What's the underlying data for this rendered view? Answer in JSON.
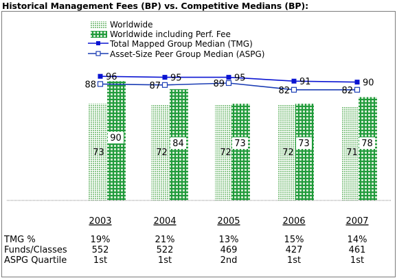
{
  "title": "Historical Management Fees (BP) vs. Competitive Medians (BP):",
  "colors": {
    "worldwide": "#8cc78c",
    "perf_fee": "#1f9a3a",
    "tmg": "#0a14d2",
    "aspg": "#1a3cb4"
  },
  "chart_data": {
    "type": "bar",
    "categories": [
      "2003",
      "2004",
      "2005",
      "2006",
      "2007"
    ],
    "series": [
      {
        "name": "Worldwide",
        "kind": "bar",
        "values": [
          73,
          72,
          72,
          72,
          71
        ]
      },
      {
        "name": "Worldwide including Perf. Fee",
        "kind": "bar",
        "values": [
          90,
          84,
          73,
          73,
          78
        ]
      },
      {
        "name": "Total Mapped Group Median (TMG)",
        "kind": "line",
        "marker": "filled-square",
        "values": [
          96,
          95,
          95,
          91,
          90
        ]
      },
      {
        "name": "Asset-Size Peer Group Median (ASPG)",
        "kind": "line",
        "marker": "open-square",
        "values": [
          88,
          87,
          89,
          82,
          82
        ]
      }
    ],
    "legend_position": "top-left",
    "grid": false
  },
  "table": {
    "rows": [
      {
        "label": "TMG %",
        "values": [
          "19%",
          "21%",
          "13%",
          "15%",
          "14%"
        ]
      },
      {
        "label": "Funds/Classes",
        "values": [
          "552",
          "522",
          "469",
          "427",
          "461"
        ]
      },
      {
        "label": "ASPG Quartile",
        "values": [
          "1st",
          "1st",
          "2nd",
          "1st",
          "1st"
        ]
      }
    ]
  }
}
